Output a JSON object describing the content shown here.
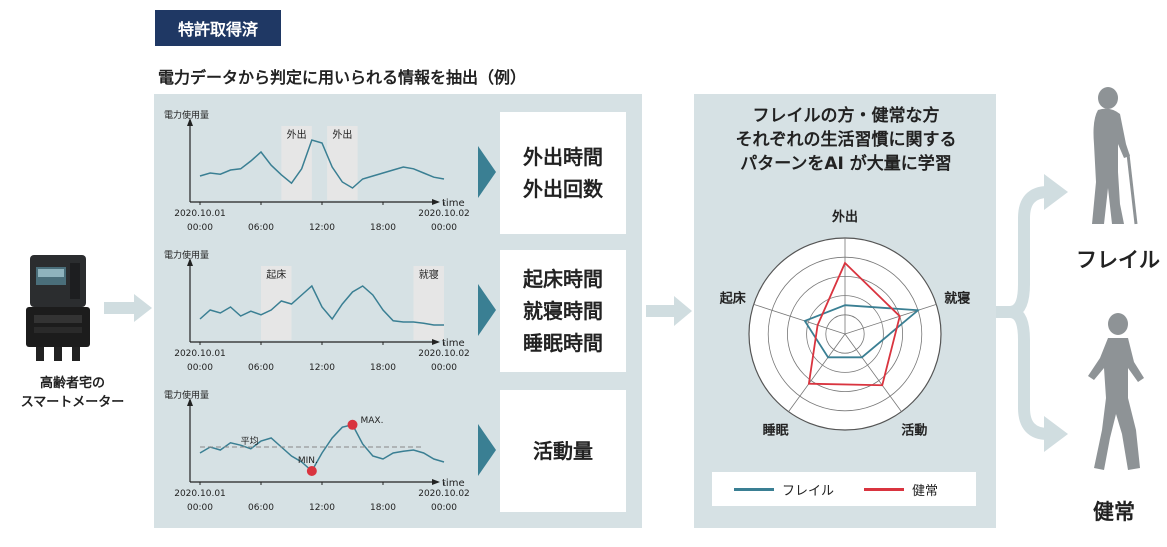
{
  "badge": "特許取得済",
  "subtitle": "電力データから判定に用いられる情報を抽出（例）",
  "meter": {
    "label_line1": "高齢者宅の",
    "label_line2": "スマートメーター"
  },
  "charts": {
    "ylabel": "電力使用量",
    "xaxis_label": "time",
    "ticks": [
      "2020.10.01\n00:00",
      "06:00",
      "12:00",
      "18:00",
      "2020.10.02\n00:00"
    ],
    "tick_date_start": "2020.10.01",
    "tick_date_end": "2020.10.02",
    "tick_times": [
      "00:00",
      "06:00",
      "12:00",
      "18:00",
      "00:00"
    ],
    "chart1_regions": [
      "外出",
      "外出"
    ],
    "chart2_regions": [
      "起床",
      "就寝"
    ],
    "chart3_labels": {
      "avg": "平均",
      "max": "MAX.",
      "min": "MIN."
    }
  },
  "outputs": [
    {
      "lines": [
        "外出時間",
        "外出回数"
      ]
    },
    {
      "lines": [
        "起床時間",
        "就寝時間",
        "睡眠時間"
      ]
    },
    {
      "lines": [
        "活動量"
      ]
    }
  ],
  "ai": {
    "title_lines": [
      "フレイルの方・健常な方",
      "それぞれの生活習慣に関する",
      "パターンをAI が大量に学習"
    ]
  },
  "chart_data": [
    {
      "type": "line",
      "title": "",
      "ylabel": "電力使用量",
      "xlabel": "time",
      "x_ticks": [
        "2020.10.01 00:00",
        "06:00",
        "12:00",
        "18:00",
        "2020.10.02 00:00"
      ],
      "highlights": [
        {
          "label": "外出",
          "from": "08:00",
          "to": "11:00"
        },
        {
          "label": "外出",
          "from": "12:30",
          "to": "15:30"
        }
      ],
      "series": [
        {
          "values": [
            0.3,
            0.35,
            0.33,
            0.4,
            0.42,
            0.55,
            0.7,
            0.48,
            0.32,
            0.18,
            0.42,
            0.9,
            0.85,
            0.45,
            0.2,
            0.1,
            0.25,
            0.3,
            0.35,
            0.4,
            0.45,
            0.42,
            0.35,
            0.28,
            0.25
          ]
        }
      ]
    },
    {
      "type": "line",
      "title": "",
      "ylabel": "電力使用量",
      "xlabel": "time",
      "x_ticks": [
        "2020.10.01 00:00",
        "06:00",
        "12:00",
        "18:00",
        "2020.10.02 00:00"
      ],
      "highlights": [
        {
          "label": "起床",
          "from": "06:00",
          "to": "09:00"
        },
        {
          "label": "就寝",
          "from": "21:00",
          "to": "24:00"
        }
      ],
      "series": [
        {
          "values": [
            0.25,
            0.4,
            0.35,
            0.45,
            0.3,
            0.38,
            0.32,
            0.4,
            0.55,
            0.5,
            0.65,
            0.8,
            0.45,
            0.25,
            0.5,
            0.7,
            0.8,
            0.65,
            0.4,
            0.22,
            0.2,
            0.2,
            0.18,
            0.15,
            0.15
          ]
        }
      ]
    },
    {
      "type": "line",
      "title": "",
      "ylabel": "電力使用量",
      "xlabel": "time",
      "x_ticks": [
        "2020.10.01 00:00",
        "06:00",
        "12:00",
        "18:00",
        "2020.10.02 00:00"
      ],
      "annotations": [
        "平均",
        "MAX.",
        "MIN."
      ],
      "series": [
        {
          "values": [
            0.35,
            0.45,
            0.4,
            0.52,
            0.48,
            0.42,
            0.55,
            0.6,
            0.45,
            0.3,
            0.2,
            0.05,
            0.35,
            0.6,
            0.78,
            0.82,
            0.5,
            0.3,
            0.25,
            0.35,
            0.38,
            0.4,
            0.35,
            0.25,
            0.2
          ]
        }
      ]
    },
    {
      "type": "radar",
      "title": "",
      "axes": [
        "外出",
        "就寝",
        "活動",
        "睡眠",
        "起床"
      ],
      "rmax": 5,
      "series": [
        {
          "name": "フレイル",
          "color": "#3a7f93",
          "values": [
            1.5,
            4.0,
            1.5,
            1.5,
            2.2
          ]
        },
        {
          "name": "健常",
          "color": "#d9343f",
          "values": [
            3.7,
            3.0,
            3.3,
            3.2,
            1.5
          ]
        }
      ]
    }
  ],
  "results": {
    "frail": "フレイル",
    "healthy": "健常"
  },
  "colors": {
    "badge": "#1f3864",
    "panel": "#d6e1e4",
    "line": "#3a7f93",
    "red": "#d9343f",
    "shade": "#e6e6e6",
    "figure": "#8e9396"
  },
  "icons": [
    "smart-meter-icon",
    "arrow-right-icon",
    "elderly-person-icon",
    "runner-icon"
  ]
}
